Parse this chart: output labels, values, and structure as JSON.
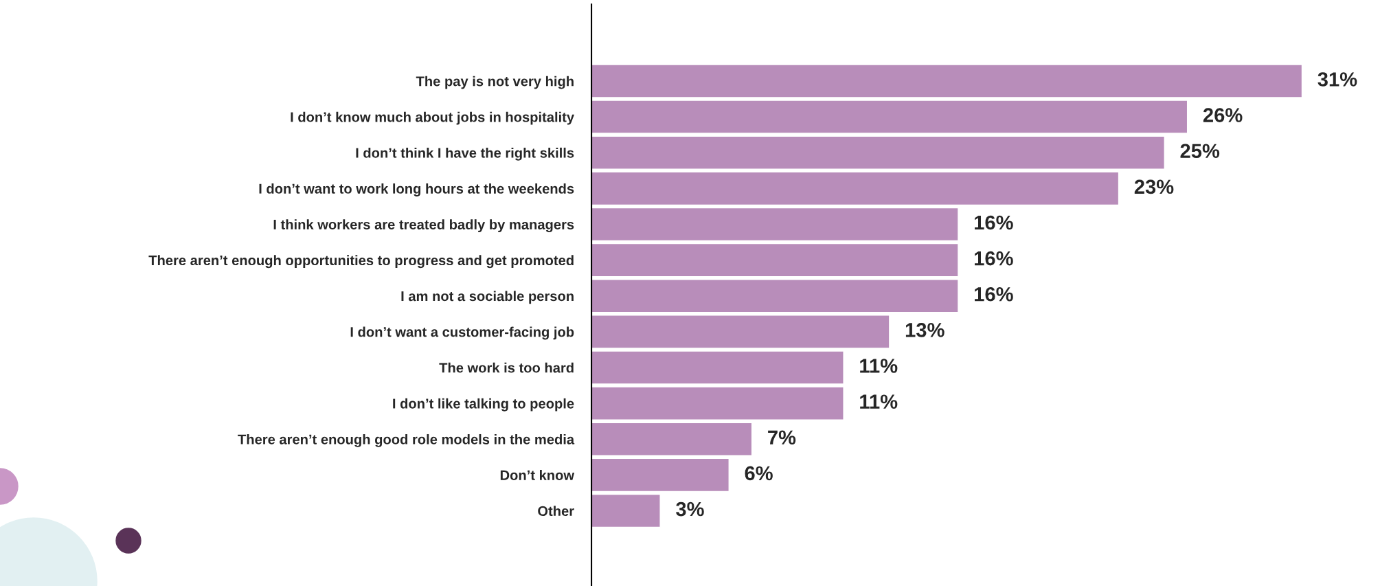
{
  "chart_data": {
    "type": "bar",
    "orientation": "horizontal",
    "color": "#b88dba",
    "categories": [
      "The pay is not very high",
      "I don’t know much about jobs in hospitality",
      "I don’t think I have the right skills",
      "I don’t want to work long hours at the weekends",
      "I think workers are treated badly by managers",
      "There aren’t enough opportunities to progress and get promoted",
      "I am not a sociable person",
      "I don’t want a customer-facing job",
      "The work is too hard",
      "I don’t like talking to people",
      "There aren’t enough good role models in the media",
      "Don’t know",
      "Other"
    ],
    "values": [
      31,
      26,
      25,
      23,
      16,
      16,
      16,
      13,
      11,
      11,
      7,
      6,
      3
    ],
    "value_labels": [
      "31%",
      "26%",
      "25%",
      "23%",
      "16%",
      "16%",
      "16%",
      "13%",
      "11%",
      "11%",
      "7%",
      "6%",
      "3%"
    ],
    "grid": false,
    "legend": false
  }
}
